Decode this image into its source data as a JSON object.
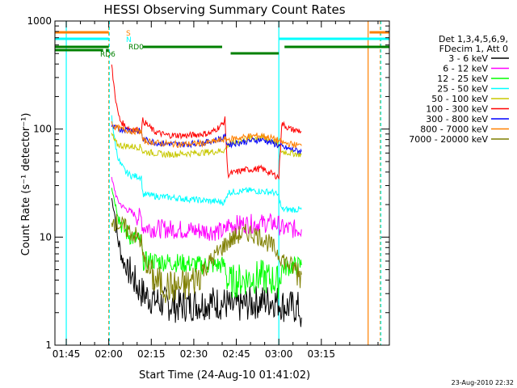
{
  "chart_data": {
    "type": "line",
    "title": "HESSI Observing Summary Count Rates",
    "xlabel": "Start Time (24-Aug-10 01:41:02)",
    "ylabel": "Count Rate (s⁻¹ detector⁻¹)",
    "y_scale": "log",
    "ylim": [
      1,
      1000
    ],
    "y_ticks": [
      1,
      10,
      100,
      1000
    ],
    "y_tick_labels": [
      "1",
      "10",
      "100",
      "1000"
    ],
    "xlim_minutes": [
      -19,
      99
    ],
    "x_ticks_minutes": [
      -15,
      0,
      15,
      30,
      45,
      60,
      75
    ],
    "x_tick_labels": [
      "01:45",
      "02:00",
      "02:15",
      "02:30",
      "02:45",
      "03:00",
      "03:15"
    ],
    "x_unit": "minutes after 02:00",
    "legend_header": [
      "Det 1,3,4,5,6,9,",
      "FDecim 1, Att 0"
    ],
    "legend_placement": "right",
    "grid": false,
    "series": [
      {
        "name": "3 - 6 keV",
        "color": "#000000",
        "points": [
          [
            0,
            null
          ],
          [
            1,
            23
          ],
          [
            2,
            17
          ],
          [
            3,
            10
          ],
          [
            5,
            6
          ],
          [
            8,
            4.5
          ],
          [
            10,
            3.5
          ],
          [
            12,
            3
          ],
          [
            14,
            2.8
          ],
          [
            18,
            2.5
          ],
          [
            24,
            2.3
          ],
          [
            30,
            2.4
          ],
          [
            36,
            2.5
          ],
          [
            42,
            2.4
          ],
          [
            43,
            2.2
          ],
          [
            46,
            2.3
          ],
          [
            52,
            2.5
          ],
          [
            58,
            2.6
          ],
          [
            60,
            2.5
          ],
          [
            62,
            2.3
          ],
          [
            67,
            2.2
          ],
          [
            68,
            1.8
          ]
        ]
      },
      {
        "name": "6 - 12 keV",
        "color": "#ff00ff",
        "points": [
          [
            0,
            null
          ],
          [
            1,
            34
          ],
          [
            2,
            28
          ],
          [
            3,
            22
          ],
          [
            5,
            19
          ],
          [
            8,
            17
          ],
          [
            10,
            15.5
          ],
          [
            11.5,
            15
          ],
          [
            12,
            12.5
          ],
          [
            16,
            12
          ],
          [
            24,
            11.8
          ],
          [
            32,
            11.5
          ],
          [
            41,
            11.2
          ],
          [
            42,
            13
          ],
          [
            50,
            13.3
          ],
          [
            58,
            13.5
          ],
          [
            60,
            13
          ],
          [
            61,
            12
          ],
          [
            68,
            11.8
          ]
        ]
      },
      {
        "name": "12 - 25 keV",
        "color": "#00ff00",
        "points": [
          [
            0,
            null
          ],
          [
            1,
            30
          ],
          [
            2,
            22
          ],
          [
            3,
            17
          ],
          [
            5,
            12
          ],
          [
            8,
            10
          ],
          [
            11.5,
            9
          ],
          [
            12,
            6
          ],
          [
            16,
            6
          ],
          [
            24,
            5.8
          ],
          [
            32,
            5.5
          ],
          [
            41,
            5.5
          ],
          [
            42,
            3.8
          ],
          [
            50,
            4.2
          ],
          [
            54,
            4.3
          ],
          [
            58,
            4
          ],
          [
            60,
            3.8
          ],
          [
            61,
            5.2
          ],
          [
            68,
            5.5
          ]
        ]
      },
      {
        "name": "25 - 50 keV",
        "color": "#00ffff",
        "points": [
          [
            0,
            null
          ],
          [
            1,
            135
          ],
          [
            2,
            80
          ],
          [
            3,
            58
          ],
          [
            4,
            48
          ],
          [
            6,
            40
          ],
          [
            8,
            37
          ],
          [
            11.5,
            36
          ],
          [
            12,
            25
          ],
          [
            16,
            24
          ],
          [
            24,
            23
          ],
          [
            32,
            22
          ],
          [
            41,
            21
          ],
          [
            42,
            26
          ],
          [
            50,
            27
          ],
          [
            58,
            26
          ],
          [
            60,
            24
          ],
          [
            61,
            18
          ],
          [
            68,
            18
          ]
        ]
      },
      {
        "name": "50 - 100 keV",
        "color": "#c8c800",
        "points": [
          [
            0,
            null
          ],
          [
            1,
            90
          ],
          [
            2,
            78
          ],
          [
            3,
            72
          ],
          [
            5,
            70
          ],
          [
            8,
            69
          ],
          [
            11.5,
            68
          ],
          [
            12,
            62
          ],
          [
            20,
            58
          ],
          [
            30,
            60
          ],
          [
            38,
            62
          ],
          [
            41,
            64
          ],
          [
            42,
            72
          ],
          [
            50,
            82
          ],
          [
            54,
            84
          ],
          [
            58,
            78
          ],
          [
            60,
            70
          ],
          [
            61,
            62
          ],
          [
            68,
            58
          ]
        ]
      },
      {
        "name": "100 - 300 keV",
        "color": "#ff0000",
        "points": [
          [
            0,
            null
          ],
          [
            1,
            390
          ],
          [
            2,
            230
          ],
          [
            3,
            150
          ],
          [
            4,
            120
          ],
          [
            6,
            105
          ],
          [
            8,
            100
          ],
          [
            11.5,
            98
          ],
          [
            12,
            120
          ],
          [
            16,
            95
          ],
          [
            20,
            88
          ],
          [
            28,
            87
          ],
          [
            36,
            92
          ],
          [
            40,
            110
          ],
          [
            41,
            122
          ],
          [
            42,
            38
          ],
          [
            48,
            42
          ],
          [
            54,
            43
          ],
          [
            58,
            38
          ],
          [
            60,
            36
          ],
          [
            61,
            112
          ],
          [
            64,
            100
          ],
          [
            68,
            95
          ]
        ]
      },
      {
        "name": "300 - 800 keV",
        "color": "#0000ff",
        "points": [
          [
            0,
            null
          ],
          [
            1,
            105
          ],
          [
            2,
            102
          ],
          [
            4,
            100
          ],
          [
            8,
            98
          ],
          [
            11.5,
            95
          ],
          [
            12,
            80
          ],
          [
            18,
            74
          ],
          [
            26,
            72
          ],
          [
            34,
            75
          ],
          [
            40,
            82
          ],
          [
            41,
            85
          ],
          [
            42,
            72
          ],
          [
            50,
            78
          ],
          [
            54,
            80
          ],
          [
            58,
            74
          ],
          [
            60,
            70
          ],
          [
            62,
            67
          ],
          [
            68,
            62
          ]
        ]
      },
      {
        "name": "800 - 7000 keV",
        "color": "#ff8000",
        "points": [
          [
            0,
            null
          ],
          [
            1,
            115
          ],
          [
            2,
            105
          ],
          [
            4,
            100
          ],
          [
            8,
            96
          ],
          [
            11.5,
            95
          ],
          [
            12,
            78
          ],
          [
            18,
            74
          ],
          [
            26,
            72
          ],
          [
            34,
            74
          ],
          [
            41,
            80
          ],
          [
            42,
            80
          ],
          [
            50,
            86
          ],
          [
            54,
            87
          ],
          [
            58,
            82
          ],
          [
            60,
            78
          ],
          [
            62,
            74
          ],
          [
            68,
            70
          ]
        ]
      },
      {
        "name": "7000 - 20000 keV",
        "color": "#7f7f00",
        "points": [
          [
            0,
            null
          ],
          [
            1,
            15
          ],
          [
            2,
            14
          ],
          [
            4,
            13
          ],
          [
            6,
            12
          ],
          [
            8,
            11
          ],
          [
            10,
            10
          ],
          [
            11.5,
            9
          ],
          [
            12,
            6.5
          ],
          [
            16,
            4
          ],
          [
            20,
            3.5
          ],
          [
            24,
            3.4
          ],
          [
            28,
            3.6
          ],
          [
            32,
            4.5
          ],
          [
            36,
            6
          ],
          [
            40,
            8
          ],
          [
            42,
            9
          ],
          [
            46,
            10.5
          ],
          [
            50,
            11
          ],
          [
            54,
            10
          ],
          [
            58,
            8
          ],
          [
            60,
            7
          ],
          [
            62,
            6
          ],
          [
            66,
            5
          ],
          [
            68,
            4.5
          ]
        ]
      }
    ],
    "flags": [
      {
        "label": "S",
        "color": "#ff8000",
        "segments": [
          [
            -19,
            0
          ],
          [
            92,
            99
          ]
        ]
      },
      {
        "label": "N",
        "color": "#00ffff",
        "segments": [
          [
            -19,
            0
          ],
          [
            60,
            99
          ]
        ]
      },
      {
        "label": "RD0",
        "color": "#008000",
        "segments": [
          [
            -19,
            0
          ],
          [
            12,
            40
          ],
          [
            43,
            60
          ],
          [
            62,
            99
          ]
        ]
      },
      {
        "label": "RD6",
        "color": "#008000",
        "segments": [
          [
            -19,
            -2
          ],
          [
            -1,
            0
          ]
        ]
      }
    ],
    "vertical_lines": [
      {
        "x": -15,
        "color": "#00ffff",
        "dashed": false
      },
      {
        "x": 0,
        "color": "#ff8000",
        "dashed": true
      },
      {
        "x": 0.2,
        "color": "#00ffff",
        "dashed": true
      },
      {
        "x": 60,
        "color": "#00ffff",
        "dashed": false
      },
      {
        "x": 91.5,
        "color": "#ff8000",
        "dashed": false
      },
      {
        "x": 95.8,
        "color": "#ff8000",
        "dashed": true
      },
      {
        "x": 96,
        "color": "#00ffff",
        "dashed": true
      }
    ]
  },
  "stamp": "23-Aug-2010 22:32"
}
